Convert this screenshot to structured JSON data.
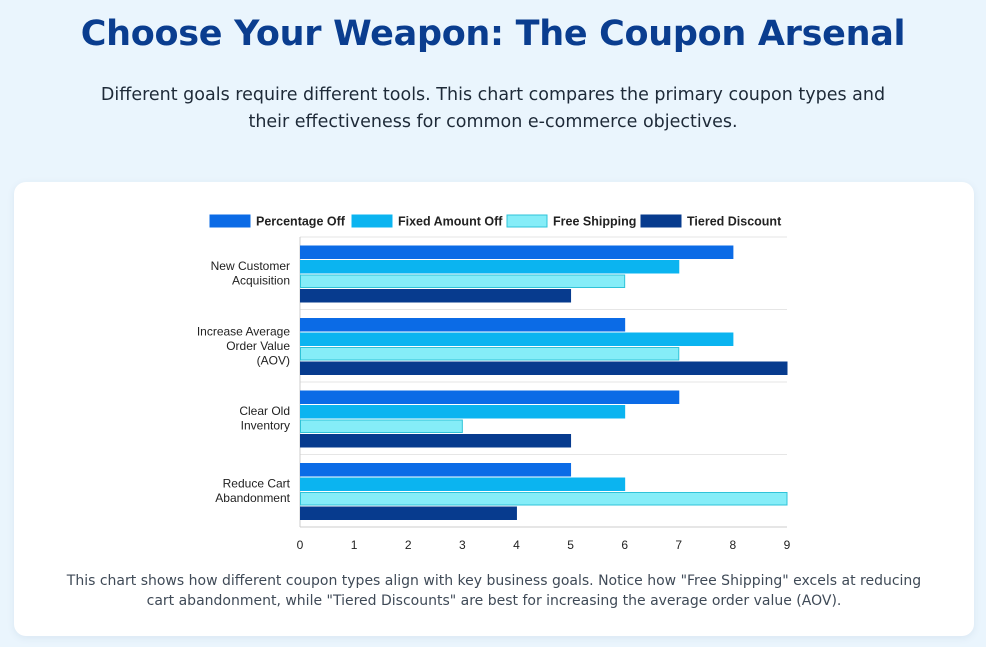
{
  "header": {
    "title": "Choose Your Weapon: The Coupon Arsenal",
    "subtitle": "Different goals require different tools. This chart compares the primary coupon types and their effectiveness for common e-commerce objectives."
  },
  "caption": "This chart shows how different coupon types align with key business goals. Notice how \"Free Shipping\" excels at reducing cart abandonment, while \"Tiered Discounts\" are best for increasing the average order value (AOV).",
  "chart_data": {
    "type": "bar",
    "orientation": "horizontal",
    "categories": [
      [
        "New Customer",
        "Acquisition"
      ],
      [
        "Increase Average",
        "Order Value",
        "(AOV)"
      ],
      [
        "Clear Old",
        "Inventory"
      ],
      [
        "Reduce Cart",
        "Abandonment"
      ]
    ],
    "series": [
      {
        "name": "Percentage Off",
        "color": "#0b6be6",
        "border": "#0b6be6",
        "values": [
          8,
          6,
          7,
          5
        ]
      },
      {
        "name": "Fixed Amount Off",
        "color": "#0bb4f0",
        "border": "#0bb4f0",
        "values": [
          7,
          8,
          6,
          6
        ]
      },
      {
        "name": "Free Shipping",
        "color": "#85edf8",
        "border": "#2fc3d8",
        "values": [
          6,
          7,
          3,
          9
        ]
      },
      {
        "name": "Tiered Discount",
        "color": "#073b8e",
        "border": "#073b8e",
        "values": [
          5,
          9,
          5,
          4
        ]
      }
    ],
    "xlim": [
      0,
      9
    ],
    "xticks": [
      "0",
      "1",
      "2",
      "3",
      "4",
      "5",
      "6",
      "7",
      "8",
      "9"
    ],
    "legend_position": "top",
    "grid": "category-separators"
  }
}
